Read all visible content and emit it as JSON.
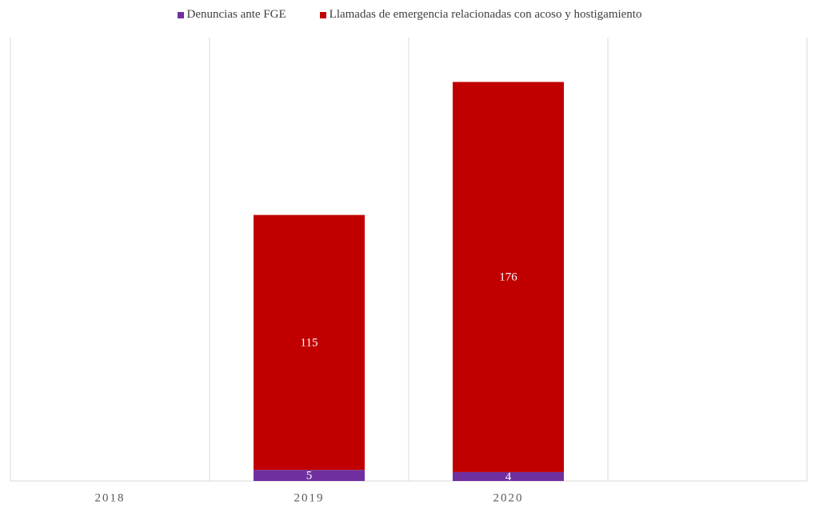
{
  "chart_data": {
    "type": "stacked-bar",
    "categories": [
      "2018",
      "2019",
      "2020",
      null
    ],
    "series": [
      {
        "name": "Denuncias ante FGE",
        "color": "#7030a0",
        "values": [
          null,
          5,
          4,
          null
        ]
      },
      {
        "name": "Llamadas de emergencia relacionadas con acoso y hostigamiento",
        "color": "#c00000",
        "values": [
          null,
          115,
          176,
          null
        ]
      }
    ],
    "ylim": [
      0,
      200
    ]
  }
}
